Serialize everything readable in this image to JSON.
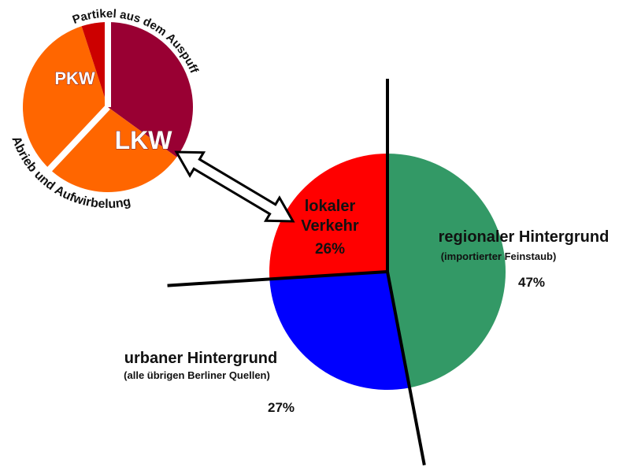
{
  "chart_data": [
    {
      "type": "pie",
      "categories": [
        "regionaler Hintergrund",
        "urbaner Hintergrund",
        "lokaler Verkehr"
      ],
      "sublabels": [
        "(importierter Feinstaub)",
        "(alle übrigen Berliner Quellen)",
        null
      ],
      "values": [
        47,
        27,
        26
      ],
      "value_labels": [
        "47%",
        "27%",
        "26%"
      ],
      "colors": [
        "#339966",
        "#0000ff",
        "#ff0000"
      ]
    },
    {
      "type": "pie",
      "groups": [
        "LKW",
        "PKW"
      ],
      "arc_labels": [
        "Partikel aus dem Auspuff",
        "Abrieb und Aufwirbelung"
      ],
      "categories": [
        null,
        null,
        null,
        null
      ],
      "values": [
        35,
        27,
        33,
        5
      ],
      "colors": [
        "#990033",
        "#ff6600",
        "#ff6600",
        "#cc0000"
      ]
    }
  ]
}
